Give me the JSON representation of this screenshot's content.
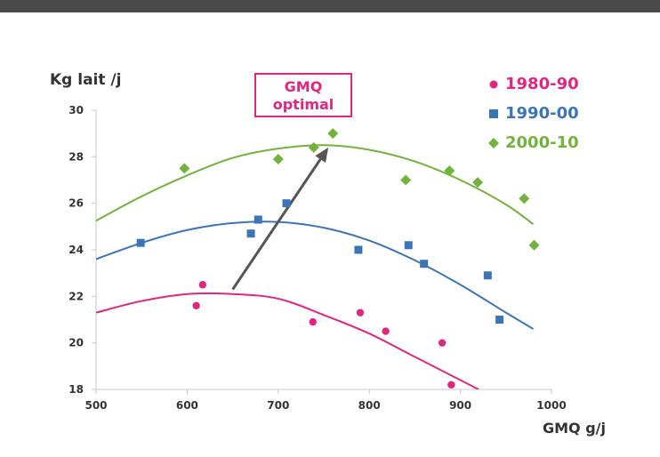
{
  "chart_data": {
    "type": "scatter",
    "xlabel": "GMQ g/j",
    "ylabel": "Kg lait /j",
    "xlim": [
      500,
      1000
    ],
    "ylim": [
      18,
      30
    ],
    "x_ticks": [
      500,
      600,
      700,
      800,
      900,
      1000
    ],
    "y_ticks": [
      18,
      20,
      22,
      24,
      26,
      28,
      30
    ],
    "annotation": {
      "line1": "GMQ",
      "line2": "optimal",
      "arrow_from": [
        650,
        22.3
      ],
      "arrow_to": [
        755,
        28.4
      ]
    },
    "legend_position": "top-right",
    "series": [
      {
        "name": "1980-90",
        "color": "#e2267f",
        "marker": "circle",
        "points": [
          [
            610,
            21.6
          ],
          [
            617,
            22.5
          ],
          [
            738,
            20.9
          ],
          [
            790,
            21.3
          ],
          [
            818,
            20.5
          ],
          [
            880,
            20.0
          ],
          [
            890,
            18.2
          ]
        ],
        "trend": [
          [
            500,
            21.3
          ],
          [
            550,
            21.8
          ],
          [
            600,
            22.1
          ],
          [
            650,
            22.1
          ],
          [
            700,
            21.9
          ],
          [
            750,
            21.2
          ],
          [
            800,
            20.4
          ],
          [
            850,
            19.4
          ],
          [
            900,
            18.4
          ],
          [
            920,
            18.0
          ]
        ]
      },
      {
        "name": "1990-00",
        "color": "#3c74b8",
        "marker": "square",
        "points": [
          [
            549,
            24.3
          ],
          [
            670,
            24.7
          ],
          [
            678,
            25.3
          ],
          [
            709,
            26.0
          ],
          [
            788,
            24.0
          ],
          [
            843,
            24.2
          ],
          [
            860,
            23.4
          ],
          [
            930,
            22.9
          ],
          [
            943,
            21.0
          ]
        ],
        "trend": [
          [
            500,
            23.6
          ],
          [
            550,
            24.3
          ],
          [
            600,
            24.85
          ],
          [
            650,
            25.15
          ],
          [
            700,
            25.2
          ],
          [
            750,
            24.95
          ],
          [
            800,
            24.4
          ],
          [
            850,
            23.55
          ],
          [
            900,
            22.5
          ],
          [
            950,
            21.3
          ],
          [
            980,
            20.6
          ]
        ]
      },
      {
        "name": "2000-10",
        "color": "#72b33b",
        "marker": "diamond",
        "points": [
          [
            597,
            27.5
          ],
          [
            700,
            27.9
          ],
          [
            739,
            28.4
          ],
          [
            760,
            29.0
          ],
          [
            840,
            27.0
          ],
          [
            888,
            27.4
          ],
          [
            919,
            26.9
          ],
          [
            970,
            26.2
          ],
          [
            981,
            24.2
          ]
        ],
        "trend": [
          [
            500,
            25.25
          ],
          [
            550,
            26.3
          ],
          [
            600,
            27.2
          ],
          [
            650,
            27.95
          ],
          [
            700,
            28.35
          ],
          [
            750,
            28.5
          ],
          [
            800,
            28.3
          ],
          [
            850,
            27.8
          ],
          [
            900,
            27.0
          ],
          [
            950,
            25.95
          ],
          [
            980,
            25.1
          ]
        ]
      }
    ]
  },
  "legend": {
    "items": [
      "1980-90",
      "1990-00",
      "2000-10"
    ]
  }
}
